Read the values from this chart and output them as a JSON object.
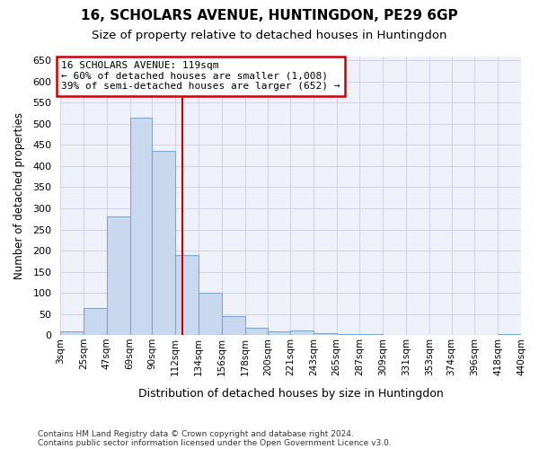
{
  "title": "16, SCHOLARS AVENUE, HUNTINGDON, PE29 6GP",
  "subtitle": "Size of property relative to detached houses in Huntingdon",
  "xlabel": "Distribution of detached houses by size in Huntingdon",
  "ylabel": "Number of detached properties",
  "footnote1": "Contains HM Land Registry data © Crown copyright and database right 2024.",
  "footnote2": "Contains public sector information licensed under the Open Government Licence v3.0.",
  "annotation_line1": "16 SCHOLARS AVENUE: 119sqm",
  "annotation_line2": "← 60% of detached houses are smaller (1,008)",
  "annotation_line3": "39% of semi-detached houses are larger (652) →",
  "bar_color": "#c8d8ee",
  "bar_edge_color": "#7aaad4",
  "vline_color": "#cc0000",
  "vline_x": 119,
  "bins": [
    3,
    25,
    47,
    69,
    90,
    112,
    134,
    156,
    178,
    200,
    221,
    243,
    265,
    287,
    309,
    331,
    353,
    374,
    396,
    418,
    440
  ],
  "bin_labels": [
    "3sqm",
    "25sqm",
    "47sqm",
    "69sqm",
    "90sqm",
    "112sqm",
    "134sqm",
    "156sqm",
    "178sqm",
    "200sqm",
    "221sqm",
    "243sqm",
    "265sqm",
    "287sqm",
    "309sqm",
    "331sqm",
    "353sqm",
    "374sqm",
    "396sqm",
    "418sqm",
    "440sqm"
  ],
  "counts": [
    10,
    65,
    280,
    515,
    435,
    190,
    100,
    45,
    18,
    10,
    12,
    5,
    3,
    3,
    0,
    0,
    0,
    0,
    0,
    3
  ],
  "ylim": [
    0,
    660
  ],
  "yticks": [
    0,
    50,
    100,
    150,
    200,
    250,
    300,
    350,
    400,
    450,
    500,
    550,
    600,
    650
  ],
  "bg_color": "#eef2f8",
  "grid_color": "#ccd4e4"
}
